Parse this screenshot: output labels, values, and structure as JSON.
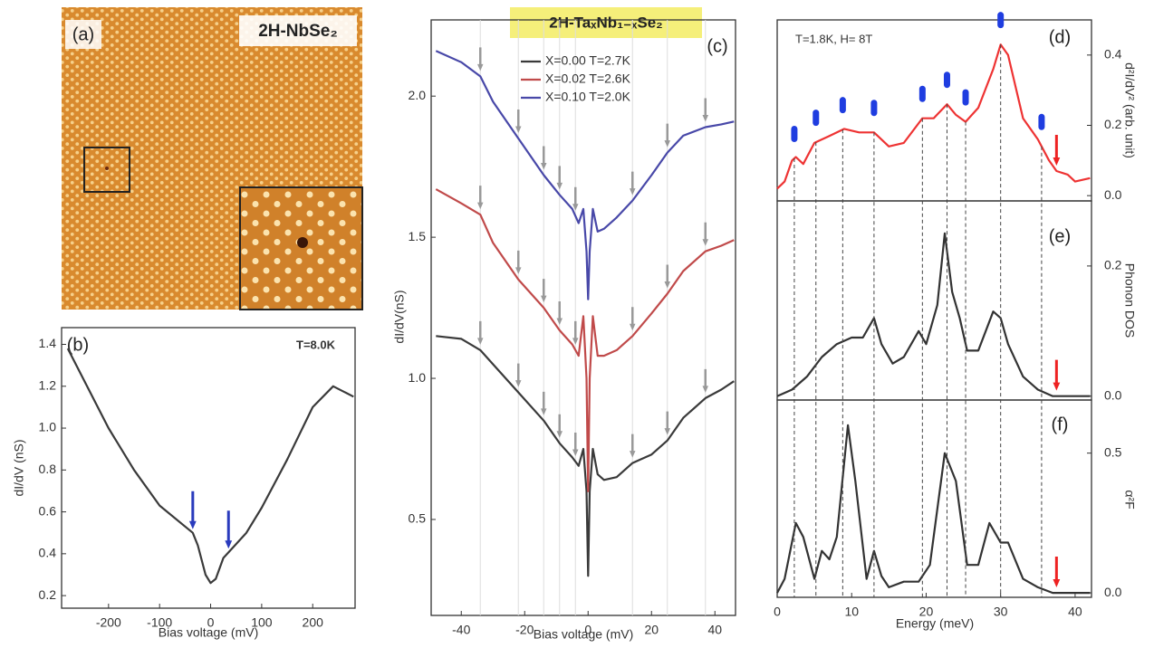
{
  "chart_data": [
    {
      "type": "image",
      "panel_label": "(a)",
      "title": "2H-NbSe₂"
    },
    {
      "type": "line",
      "panel_label": "(b)",
      "annotation": "T=8.0K",
      "x_label": "Bias voltage (mV)",
      "y_label": "dI/dV (nS)",
      "color": "#3a3a3a",
      "xlim": [
        -292,
        283
      ],
      "xticks": [
        -200,
        -100,
        0,
        100,
        200
      ],
      "ylim": [
        0.14,
        1.48
      ],
      "yticks": [
        0.2,
        0.4,
        0.6,
        0.8,
        {
          "value": 1,
          "label": "1.0"
        },
        1.2,
        1.4
      ],
      "x": [
        -280,
        -200,
        -150,
        -100,
        -50,
        -35,
        -25,
        -10,
        0,
        10,
        25,
        40,
        70,
        100,
        150,
        200,
        240,
        280
      ],
      "values": [
        1.38,
        1.0,
        0.8,
        0.63,
        0.53,
        0.5,
        0.44,
        0.3,
        0.26,
        0.28,
        0.38,
        0.42,
        0.5,
        0.62,
        0.85,
        1.1,
        1.2,
        1.15
      ],
      "arrows_x": [
        -35,
        35
      ],
      "arrow_color": "#2a3bbd"
    },
    {
      "type": "line",
      "panel_label": "(c)",
      "title": "2H-TaₓNb₁₋ₓSe₂",
      "x_label": "Bias voltage (mV)",
      "y_label": "dI/dV(nS)",
      "xlim": [
        -49.5,
        46.5
      ],
      "xticks": [
        -40,
        -20,
        0,
        20,
        40
      ],
      "ylim": [
        0.16,
        2.27
      ],
      "yticks": [
        0.5,
        {
          "value": 1,
          "label": "1.0"
        },
        1.5,
        {
          "value": 2,
          "label": "2.0"
        }
      ],
      "x": [
        -48,
        -40,
        -34,
        -30,
        -22,
        -14,
        -9,
        -5,
        -3,
        -1.5,
        -0.5,
        0,
        0.5,
        1.5,
        3,
        5,
        9,
        14,
        20,
        25,
        30,
        37,
        42,
        46
      ],
      "series": [
        {
          "name": "X=0.00 T=2.7K",
          "color": "#3a3a3a",
          "values": [
            1.15,
            1.14,
            1.1,
            1.05,
            0.95,
            0.85,
            0.77,
            0.72,
            0.69,
            0.75,
            0.6,
            0.3,
            0.6,
            0.75,
            0.66,
            0.64,
            0.65,
            0.7,
            0.73,
            0.78,
            0.86,
            0.93,
            0.96,
            0.99
          ]
        },
        {
          "name": "X=0.02 T=2.6K",
          "color": "#c04a4a",
          "values": [
            1.67,
            1.62,
            1.58,
            1.48,
            1.35,
            1.25,
            1.17,
            1.12,
            1.08,
            1.22,
            1.0,
            0.6,
            1.0,
            1.22,
            1.08,
            1.08,
            1.1,
            1.15,
            1.23,
            1.3,
            1.38,
            1.45,
            1.47,
            1.49
          ]
        },
        {
          "name": "X=0.10 T=2.0K",
          "color": "#4848a8",
          "values": [
            2.16,
            2.12,
            2.07,
            1.98,
            1.85,
            1.72,
            1.65,
            1.6,
            1.55,
            1.6,
            1.45,
            1.28,
            1.45,
            1.6,
            1.52,
            1.53,
            1.57,
            1.63,
            1.72,
            1.8,
            1.86,
            1.89,
            1.9,
            1.91
          ]
        }
      ],
      "arrows_x": [
        -34,
        -22,
        -14,
        -9,
        -4,
        14,
        25,
        37
      ],
      "arrow_color": "#999999"
    },
    {
      "type": "line",
      "panel_label": "(d)",
      "annotation": "T=1.8K, H= 8T",
      "y_label": "d²I/dV² (arb. unit)",
      "color": "#ee3333",
      "xlim": [
        0,
        42.2
      ],
      "ylim": [
        -0.015,
        0.5
      ],
      "yticks": [
        {
          "value": 0,
          "label": "0.0"
        },
        0.2,
        0.4
      ],
      "x": [
        0,
        1,
        2,
        2.5,
        3.5,
        5,
        7,
        9,
        11,
        13,
        15,
        17,
        19.5,
        21,
        22.8,
        24,
        25.3,
        27,
        29,
        30,
        31,
        33,
        35,
        36.5,
        37.5,
        39,
        40,
        42
      ],
      "values": [
        0.02,
        0.04,
        0.1,
        0.11,
        0.09,
        0.15,
        0.17,
        0.19,
        0.18,
        0.18,
        0.14,
        0.15,
        0.22,
        0.22,
        0.26,
        0.23,
        0.21,
        0.25,
        0.36,
        0.43,
        0.4,
        0.22,
        0.16,
        0.1,
        0.07,
        0.06,
        0.04,
        0.05
      ],
      "marker_x": [
        2.3,
        5.2,
        8.8,
        13,
        19.5,
        22.8,
        25.3,
        30,
        35.5
      ],
      "marker_color": "#1f3de0",
      "red_arrow_x": 37.5
    },
    {
      "type": "line",
      "panel_label": "(e)",
      "y_label": "Phonon DOS",
      "color": "#333333",
      "xlim": [
        0,
        42.2
      ],
      "ylim": [
        -0.006,
        0.3
      ],
      "yticks": [
        {
          "value": 0,
          "label": "0.0"
        },
        0.2
      ],
      "x": [
        0,
        2,
        4,
        6,
        8,
        10,
        11.5,
        13,
        14,
        15.5,
        17,
        19,
        20,
        21.5,
        22.5,
        23.5,
        24.5,
        25.5,
        27,
        29,
        30,
        31,
        33,
        35,
        37,
        42
      ],
      "values": [
        0,
        0.01,
        0.03,
        0.06,
        0.08,
        0.09,
        0.09,
        0.12,
        0.08,
        0.05,
        0.06,
        0.1,
        0.08,
        0.14,
        0.25,
        0.16,
        0.12,
        0.07,
        0.07,
        0.13,
        0.12,
        0.08,
        0.03,
        0.01,
        0,
        0
      ],
      "red_arrow_x": 37.5
    },
    {
      "type": "line",
      "panel_label": "(f)",
      "x_label": "Energy (meV)",
      "y_label": "α²F",
      "color": "#333333",
      "xlim": [
        0,
        42.2
      ],
      "xticks": [
        0,
        10,
        20,
        30,
        40
      ],
      "ylim": [
        -0.016,
        0.69
      ],
      "yticks": [
        {
          "value": 0,
          "label": "0.0"
        },
        0.5
      ],
      "x": [
        0,
        1,
        2.5,
        3.5,
        5,
        6,
        7,
        8,
        9.5,
        10.5,
        12,
        13,
        14,
        15,
        17,
        19,
        20.5,
        22.5,
        24,
        25.5,
        27,
        28.5,
        30,
        31,
        33,
        35,
        37,
        42
      ],
      "values": [
        0,
        0.05,
        0.25,
        0.2,
        0.05,
        0.15,
        0.12,
        0.2,
        0.6,
        0.4,
        0.05,
        0.15,
        0.06,
        0.02,
        0.04,
        0.04,
        0.1,
        0.5,
        0.4,
        0.1,
        0.1,
        0.25,
        0.18,
        0.18,
        0.05,
        0.02,
        0,
        0
      ],
      "red_arrow_x": 37.5
    }
  ]
}
